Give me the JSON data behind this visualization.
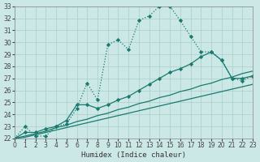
{
  "title": "",
  "xlabel": "Humidex (Indice chaleur)",
  "bg_color": "#cce8e6",
  "grid_color": "#aacfcc",
  "line_color": "#1a7a6e",
  "xmin": 0,
  "xmax": 23,
  "ymin": 22,
  "ymax": 33,
  "series": [
    {
      "y": [
        22.0,
        23.0,
        22.2,
        22.2,
        23.0,
        23.2,
        24.5,
        26.6,
        25.2,
        29.8,
        30.2,
        29.4,
        31.8,
        32.2,
        33.0,
        33.0,
        31.8,
        30.5,
        29.2,
        29.2,
        28.5,
        27.0,
        26.8,
        27.2
      ],
      "linestyle": "dotted",
      "marker": "D",
      "markersize": 2.2,
      "linewidth": 0.9
    },
    {
      "y": [
        22.0,
        22.5,
        22.5,
        22.8,
        23.0,
        23.5,
        24.8,
        24.8,
        24.5,
        24.8,
        25.2,
        25.5,
        26.0,
        26.5,
        27.0,
        27.5,
        27.8,
        28.2,
        28.8,
        29.2,
        28.5,
        27.0,
        27.0,
        27.2
      ],
      "linestyle": "-",
      "marker": "D",
      "markersize": 2.2,
      "linewidth": 0.9
    },
    {
      "y": [
        22.0,
        22.2,
        22.4,
        22.6,
        22.9,
        23.1,
        23.4,
        23.6,
        23.9,
        24.1,
        24.4,
        24.6,
        24.9,
        25.1,
        25.4,
        25.6,
        25.9,
        26.1,
        26.4,
        26.6,
        26.9,
        27.1,
        27.4,
        27.6
      ],
      "linestyle": "-",
      "marker": null,
      "markersize": 0,
      "linewidth": 0.9
    },
    {
      "y": [
        22.0,
        22.1,
        22.3,
        22.5,
        22.7,
        22.9,
        23.1,
        23.3,
        23.5,
        23.7,
        23.9,
        24.1,
        24.3,
        24.5,
        24.7,
        24.9,
        25.1,
        25.3,
        25.5,
        25.7,
        25.9,
        26.1,
        26.3,
        26.5
      ],
      "linestyle": "-",
      "marker": null,
      "markersize": 0,
      "linewidth": 0.9
    }
  ]
}
